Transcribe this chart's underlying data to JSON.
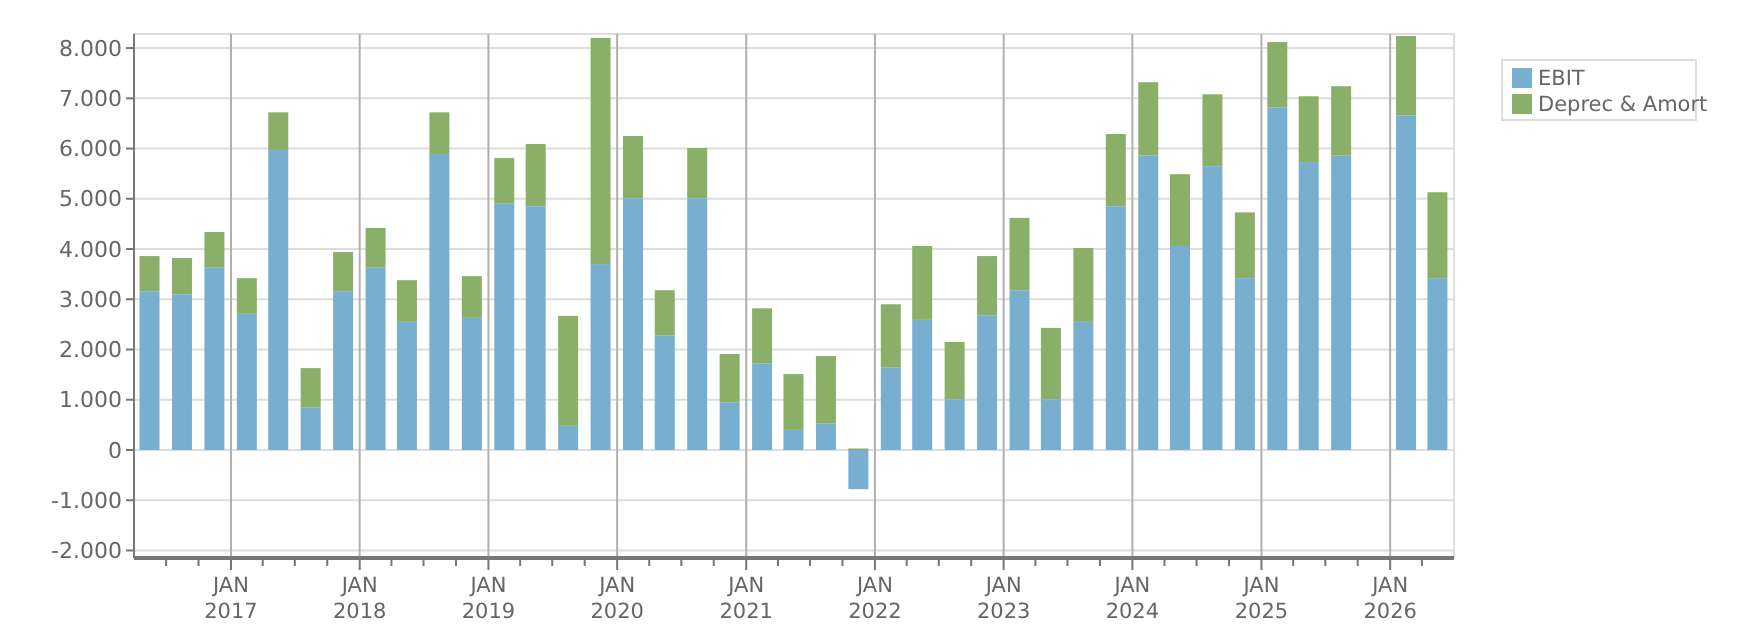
{
  "chart_data": {
    "type": "bar",
    "stacked": true,
    "x": [
      "2016-05-15",
      "2016-08-15",
      "2016-11-15",
      "2017-02-15",
      "2017-05-15",
      "2017-08-15",
      "2017-11-15",
      "2018-02-15",
      "2018-05-15",
      "2018-08-15",
      "2018-11-15",
      "2019-02-15",
      "2019-05-15",
      "2019-08-15",
      "2019-11-15",
      "2020-02-15",
      "2020-05-15",
      "2020-08-15",
      "2020-11-15",
      "2021-02-15",
      "2021-05-15",
      "2021-08-15",
      "2021-11-15",
      "2022-02-15",
      "2022-05-15",
      "2022-08-15",
      "2022-11-15",
      "2023-02-15",
      "2023-05-15",
      "2023-08-15",
      "2023-11-15",
      "2024-02-15",
      "2024-05-15",
      "2024-08-15",
      "2024-11-15",
      "2025-02-15",
      "2025-05-15",
      "2025-08-15",
      "2026-02-15",
      "2026-05-15"
    ],
    "series": [
      {
        "name": "EBIT",
        "color": "#78afd1",
        "values": [
          3160,
          3100,
          3630,
          2710,
          5970,
          850,
          3160,
          3630,
          2550,
          5890,
          2630,
          4910,
          4850,
          480,
          3700,
          5010,
          2280,
          5010,
          950,
          1720,
          400,
          530,
          -780,
          1640,
          2590,
          1010,
          2680,
          3180,
          1010,
          2550,
          4850,
          5860,
          4060,
          5650,
          3420,
          6820,
          5730,
          5860,
          6660,
          3420
        ]
      },
      {
        "name": "Deprec & Amort",
        "color": "#8aaf69",
        "values": [
          700,
          720,
          710,
          710,
          750,
          780,
          780,
          790,
          830,
          830,
          830,
          900,
          1240,
          2190,
          4500,
          1240,
          900,
          1000,
          960,
          1100,
          1110,
          1340,
          30,
          1260,
          1470,
          1140,
          1180,
          1440,
          1420,
          1470,
          1440,
          1460,
          1430,
          1430,
          1310,
          1300,
          1310,
          1380,
          1580,
          1710
        ]
      }
    ],
    "xlim": [
      "2016-04-01",
      "2026-07-01"
    ],
    "xticks": [
      {
        "value": "2016-07-01",
        "label": null
      },
      {
        "value": "2016-10-01",
        "label": null
      },
      {
        "value": "2017-01-01",
        "label": "JAN 2017"
      },
      {
        "value": "2017-04-01",
        "label": null
      },
      {
        "value": "2017-07-01",
        "label": null
      },
      {
        "value": "2017-10-01",
        "label": null
      },
      {
        "value": "2018-01-01",
        "label": "JAN 2018"
      },
      {
        "value": "2018-04-01",
        "label": null
      },
      {
        "value": "2018-07-01",
        "label": null
      },
      {
        "value": "2018-10-01",
        "label": null
      },
      {
        "value": "2019-01-01",
        "label": "JAN 2019"
      },
      {
        "value": "2019-04-01",
        "label": null
      },
      {
        "value": "2019-07-01",
        "label": null
      },
      {
        "value": "2019-10-01",
        "label": null
      },
      {
        "value": "2020-01-01",
        "label": "JAN 2020"
      },
      {
        "value": "2020-04-01",
        "label": null
      },
      {
        "value": "2020-07-01",
        "label": null
      },
      {
        "value": "2020-10-01",
        "label": null
      },
      {
        "value": "2021-01-01",
        "label": "JAN 2021"
      },
      {
        "value": "2021-04-01",
        "label": null
      },
      {
        "value": "2021-07-01",
        "label": null
      },
      {
        "value": "2021-10-01",
        "label": null
      },
      {
        "value": "2022-01-01",
        "label": "JAN 2022"
      },
      {
        "value": "2022-04-01",
        "label": null
      },
      {
        "value": "2022-07-01",
        "label": null
      },
      {
        "value": "2022-10-01",
        "label": null
      },
      {
        "value": "2023-01-01",
        "label": "JAN 2023"
      },
      {
        "value": "2023-04-01",
        "label": null
      },
      {
        "value": "2023-07-01",
        "label": null
      },
      {
        "value": "2023-10-01",
        "label": null
      },
      {
        "value": "2024-01-01",
        "label": "JAN 2024"
      },
      {
        "value": "2024-04-01",
        "label": null
      },
      {
        "value": "2024-07-01",
        "label": null
      },
      {
        "value": "2024-10-01",
        "label": null
      },
      {
        "value": "2025-01-01",
        "label": "JAN 2025"
      },
      {
        "value": "2025-04-01",
        "label": null
      },
      {
        "value": "2025-07-01",
        "label": null
      },
      {
        "value": "2025-10-01",
        "label": null
      },
      {
        "value": "2026-01-01",
        "label": "JAN 2026"
      },
      {
        "value": "2026-04-01",
        "label": null
      }
    ],
    "ylim": [
      -2150,
      8280
    ],
    "yticks": [
      {
        "value": -2000,
        "label": "-2.000"
      },
      {
        "value": -1000,
        "label": "-1.000"
      },
      0,
      {
        "value": 1000,
        "label": "1.000"
      },
      {
        "value": 2000,
        "label": "2.000"
      },
      {
        "value": 3000,
        "label": "3.000"
      },
      {
        "value": 4000,
        "label": "4.000"
      },
      {
        "value": 5000,
        "label": "5.000"
      },
      {
        "value": 6000,
        "label": "6.000"
      },
      {
        "value": 7000,
        "label": "7.000"
      },
      {
        "value": 8000,
        "label": "8.000"
      }
    ],
    "grid": true,
    "legend": "top right"
  }
}
